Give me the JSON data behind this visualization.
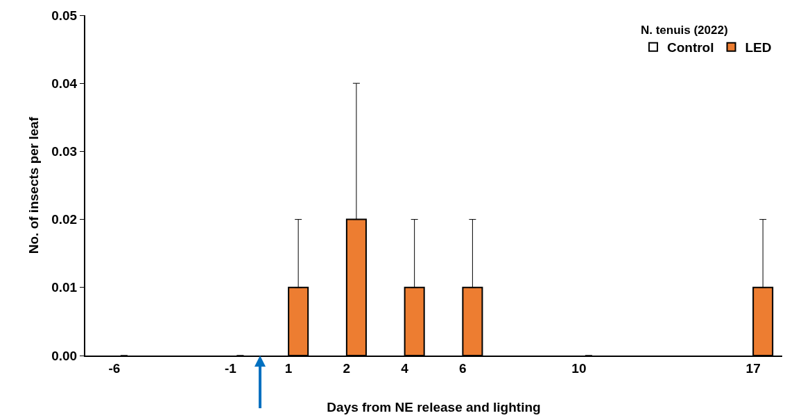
{
  "chart_data": {
    "type": "bar",
    "legend_title": "N. tenuis (2022)",
    "xlabel": "Days from NE release and lighting",
    "ylabel": "No. of insects per leaf",
    "categories": [
      "-6",
      null,
      "-1",
      "1",
      "2",
      "4",
      "6",
      null,
      "10",
      null,
      null,
      "17"
    ],
    "series": [
      {
        "name": "Control",
        "color": "#ffffff",
        "values": [
          0,
          null,
          0,
          0,
          0,
          0,
          0,
          null,
          0,
          null,
          null,
          0
        ]
      },
      {
        "name": "LED",
        "color": "#ed7d31",
        "values": [
          0,
          null,
          0,
          0.01,
          0.02,
          0.01,
          0.01,
          null,
          0,
          null,
          null,
          0.01
        ],
        "errors": [
          null,
          null,
          null,
          [
            0.01,
            0.02
          ],
          [
            0.02,
            0.04
          ],
          [
            0.01,
            0.02
          ],
          [
            0.01,
            0.02
          ],
          null,
          null,
          null,
          null,
          [
            0.01,
            0.02
          ]
        ]
      }
    ],
    "ylim": [
      0,
      0.05
    ],
    "yticks": [
      {
        "value": 0,
        "label": "0.00"
      },
      {
        "value": 0.01,
        "label": "0.01"
      },
      {
        "value": 0.02,
        "label": "0.02"
      },
      {
        "value": 0.03,
        "label": "0.03"
      },
      {
        "value": 0.04,
        "label": "0.04"
      },
      {
        "value": 0.05,
        "label": "0.05"
      }
    ],
    "grid": false,
    "legend": "top right"
  }
}
